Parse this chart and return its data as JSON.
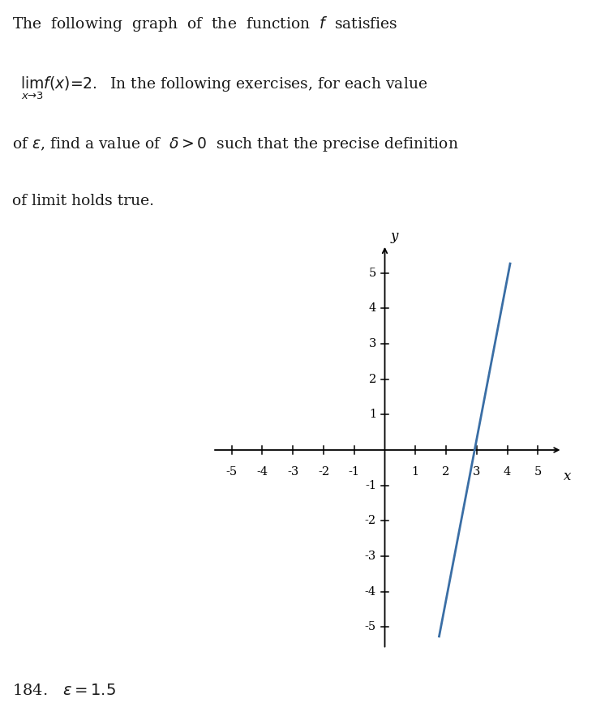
{
  "line_x": [
    1.767,
    4.1
  ],
  "line_y": [
    -5.3,
    5.3
  ],
  "line_color": "#3a6ea5",
  "line_width": 2.0,
  "xlim": [
    -5.8,
    5.8
  ],
  "ylim": [
    -5.8,
    5.8
  ],
  "xticks": [
    -5,
    -4,
    -3,
    -2,
    -1,
    1,
    2,
    3,
    4,
    5
  ],
  "yticks": [
    -5,
    -4,
    -3,
    -2,
    -1,
    1,
    2,
    3,
    4,
    5
  ],
  "xlabel": "x",
  "ylabel": "y",
  "bg_color": "#ffffff",
  "axis_color": "#000000",
  "tick_color": "#000000",
  "footer_text": "184.   ε = 1.5"
}
